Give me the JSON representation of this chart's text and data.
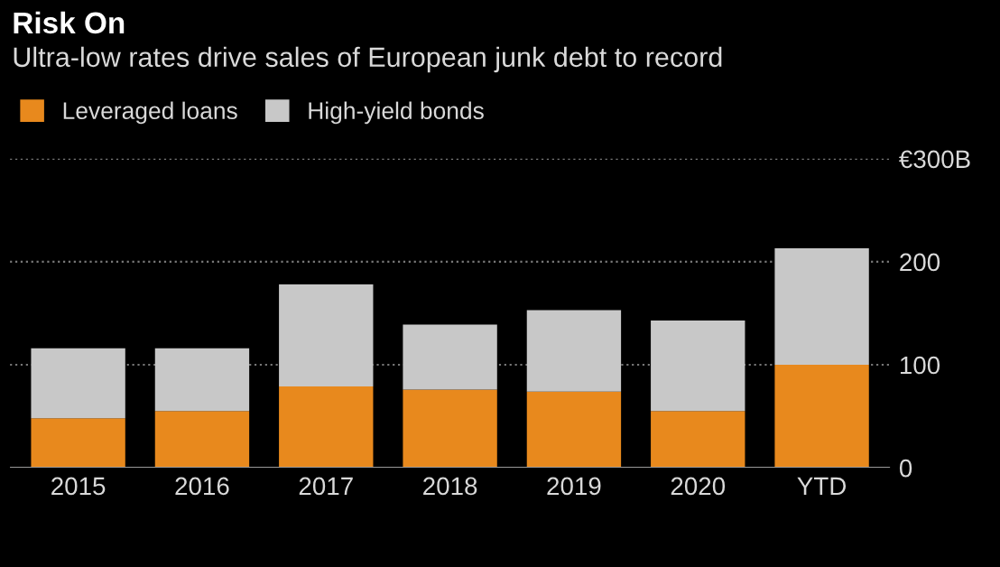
{
  "chart_data": {
    "type": "bar",
    "title": "Risk On",
    "subtitle": "Ultra-low rates drive sales of European junk debt to record",
    "categories": [
      "2015",
      "2016",
      "2017",
      "2018",
      "2019",
      "2020",
      "YTD"
    ],
    "stacked": true,
    "series": [
      {
        "name": "Leveraged loans",
        "color": "#e8891d",
        "values": [
          48,
          55,
          79,
          76,
          74,
          55,
          100
        ]
      },
      {
        "name": "High-yield bonds",
        "color": "#c8c8c8",
        "values": [
          68,
          61,
          99,
          63,
          79,
          88,
          113
        ]
      }
    ],
    "ylim": [
      0,
      300
    ],
    "yticks": [
      0,
      100,
      200,
      {
        "value": 300,
        "label": "€300B"
      }
    ],
    "grid": "y",
    "legend": "top left"
  }
}
